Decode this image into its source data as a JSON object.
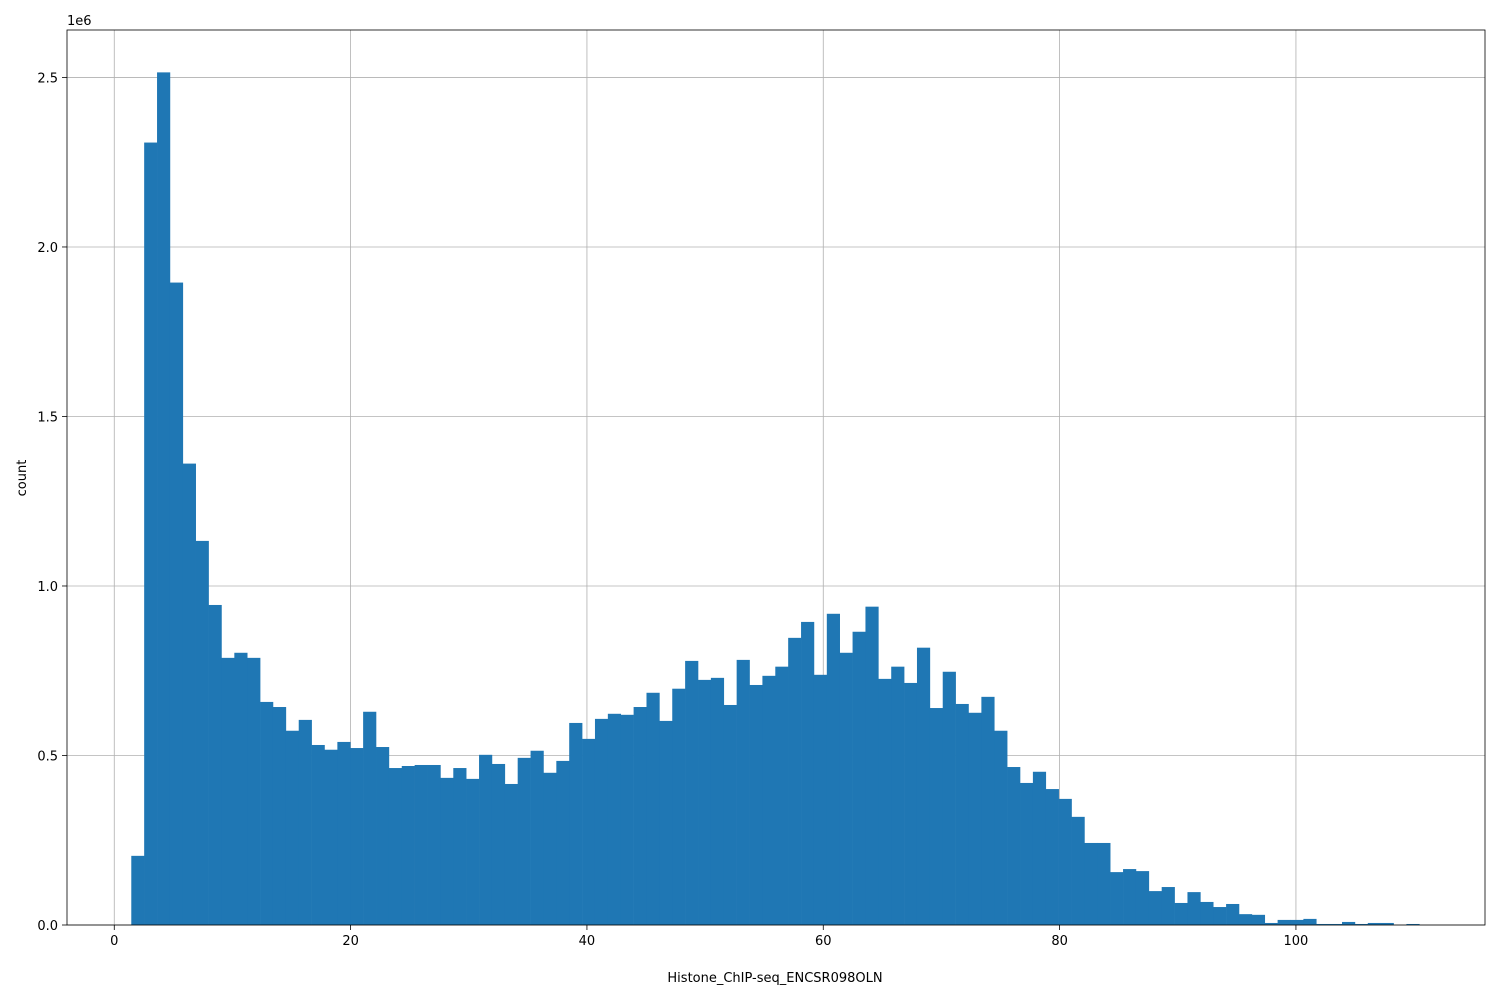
{
  "chart_data": {
    "type": "bar",
    "histogram": true,
    "title": "",
    "xlabel": "Histone_ChIP-seq_ENCSR098OLN",
    "ylabel": "count",
    "y_offset_label": "1e6",
    "xlim": [
      -4,
      116
    ],
    "ylim": [
      0,
      2.64
    ],
    "y_scale": 1000000,
    "grid": true,
    "bar_color": "#1f77b4",
    "grid_color": "#b0b0b0",
    "bin_start": 1.44,
    "bin_width": 1.09,
    "xticks": [
      "0",
      "20",
      "40",
      "60",
      "80",
      "100"
    ],
    "xtick_values": [
      0,
      20,
      40,
      60,
      80,
      100
    ],
    "yticks": [
      "0.0",
      "0.5",
      "1.0",
      "1.5",
      "2.0",
      "2.5"
    ],
    "ytick_values": [
      0,
      0.5,
      1.0,
      1.5,
      2.0,
      2.5
    ],
    "values": [
      0.204,
      2.308,
      2.515,
      1.895,
      1.361,
      1.133,
      0.944,
      0.788,
      0.803,
      0.788,
      0.658,
      0.643,
      0.573,
      0.605,
      0.531,
      0.517,
      0.54,
      0.522,
      0.629,
      0.525,
      0.463,
      0.469,
      0.472,
      0.472,
      0.434,
      0.463,
      0.431,
      0.502,
      0.475,
      0.416,
      0.493,
      0.514,
      0.449,
      0.484,
      0.596,
      0.549,
      0.608,
      0.623,
      0.62,
      0.643,
      0.685,
      0.602,
      0.697,
      0.779,
      0.723,
      0.729,
      0.649,
      0.782,
      0.708,
      0.735,
      0.762,
      0.847,
      0.894,
      0.738,
      0.918,
      0.803,
      0.865,
      0.939,
      0.726,
      0.762,
      0.714,
      0.818,
      0.64,
      0.747,
      0.652,
      0.626,
      0.673,
      0.573,
      0.466,
      0.419,
      0.452,
      0.401,
      0.372,
      0.319,
      0.242,
      0.242,
      0.156,
      0.165,
      0.159,
      0.1,
      0.112,
      0.065,
      0.097,
      0.068,
      0.053,
      0.062,
      0.032,
      0.03,
      0.006,
      0.015,
      0.015,
      0.018,
      0.003,
      0.003,
      0.009,
      0.003,
      0.006,
      0.006,
      0.0,
      0.003
    ]
  }
}
